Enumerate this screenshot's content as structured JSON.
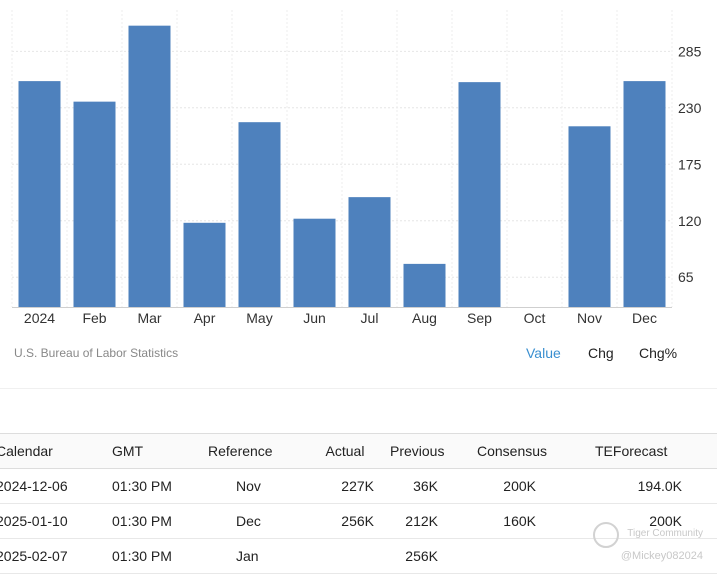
{
  "chart_data": {
    "type": "bar",
    "categories": [
      "2024",
      "Feb",
      "Mar",
      "Apr",
      "May",
      "Jun",
      "Jul",
      "Aug",
      "Sep",
      "Oct",
      "Nov",
      "Dec"
    ],
    "values": [
      256,
      236,
      310,
      118,
      216,
      122,
      143,
      78,
      255,
      36,
      212,
      256
    ],
    "yticks": [
      65,
      120,
      175,
      230,
      285
    ],
    "ylim": [
      36,
      335
    ],
    "title": "",
    "xlabel": "",
    "ylabel": "",
    "grid": true,
    "bar_color": "#4e81bd"
  },
  "source": "U.S. Bureau of Labor Statistics",
  "toggles": [
    {
      "label": "Value",
      "active": true
    },
    {
      "label": "Chg",
      "active": false
    },
    {
      "label": "Chg%",
      "active": false
    }
  ],
  "calendar": {
    "headers": [
      "Calendar",
      "GMT",
      "Reference",
      "Actual",
      "Previous",
      "Consensus",
      "TEForecast"
    ],
    "rows": [
      [
        "2024-12-06",
        "01:30 PM",
        "Nov",
        "227K",
        "36K",
        "200K",
        "194.0K"
      ],
      [
        "2025-01-10",
        "01:30 PM",
        "Dec",
        "256K",
        "212K",
        "160K",
        "200K"
      ],
      [
        "2025-02-07",
        "01:30 PM",
        "Jan",
        "",
        "256K",
        "",
        ""
      ]
    ]
  },
  "watermark": {
    "brand": "Tiger Community",
    "user": "@Mickey082024"
  }
}
